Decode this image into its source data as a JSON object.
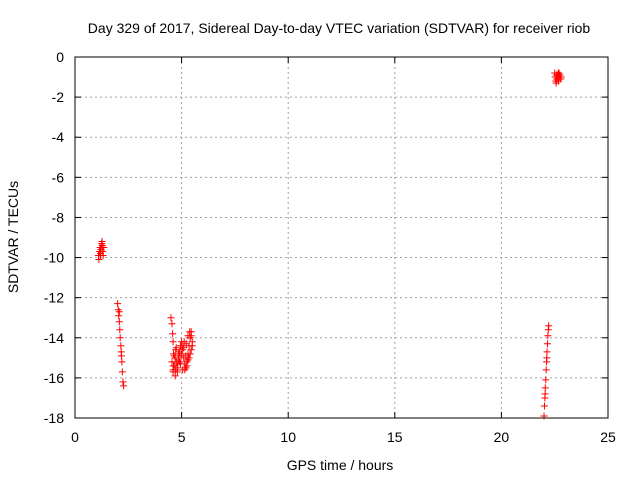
{
  "chart_data": {
    "type": "scatter",
    "title": "Day 329 of 2017, Sidereal Day-to-day VTEC variation (SDTVAR) for receiver riob",
    "xlabel": "GPS time / hours",
    "ylabel": "SDTVAR / TECUs",
    "xlim": [
      0,
      25
    ],
    "ylim": [
      -18,
      0
    ],
    "xticks": [
      0,
      5,
      10,
      15,
      20,
      25
    ],
    "yticks": [
      0,
      -2,
      -4,
      -6,
      -8,
      -10,
      -12,
      -14,
      -16,
      -18
    ],
    "xtick_labels": [
      "0",
      "5",
      "10",
      "15",
      "20",
      "25"
    ],
    "ytick_labels": [
      "0",
      "-2",
      "-4",
      "-6",
      "-8",
      "-10",
      "-12",
      "-14",
      "-16",
      "-18"
    ],
    "grid": true,
    "marker": "+",
    "color": "#ff0000",
    "series": [
      {
        "name": "SDTVAR",
        "points": [
          [
            1.1,
            -9.9
          ],
          [
            1.12,
            -10.1
          ],
          [
            1.15,
            -9.7
          ],
          [
            1.18,
            -9.5
          ],
          [
            1.2,
            -9.8
          ],
          [
            1.22,
            -9.6
          ],
          [
            1.25,
            -9.3
          ],
          [
            1.28,
            -9.4
          ],
          [
            1.3,
            -9.7
          ],
          [
            1.32,
            -9.9
          ],
          [
            1.35,
            -9.5
          ],
          [
            1.2,
            -9.9
          ],
          [
            1.27,
            -9.2
          ],
          [
            2.0,
            -12.3
          ],
          [
            2.03,
            -12.6
          ],
          [
            2.05,
            -12.9
          ],
          [
            2.08,
            -13.2
          ],
          [
            2.1,
            -13.6
          ],
          [
            2.12,
            -14.0
          ],
          [
            2.15,
            -14.4
          ],
          [
            2.18,
            -14.9
          ],
          [
            2.2,
            -15.2
          ],
          [
            2.22,
            -15.7
          ],
          [
            2.25,
            -16.2
          ],
          [
            2.28,
            -16.4
          ],
          [
            2.08,
            -12.7
          ],
          [
            2.17,
            -14.7
          ],
          [
            4.5,
            -13.0
          ],
          [
            4.55,
            -13.3
          ],
          [
            4.58,
            -13.8
          ],
          [
            4.6,
            -14.2
          ],
          [
            4.62,
            -14.8
          ],
          [
            4.55,
            -15.2
          ],
          [
            4.6,
            -15.6
          ],
          [
            4.65,
            -15.4
          ],
          [
            4.7,
            -15.0
          ],
          [
            4.72,
            -14.6
          ],
          [
            4.75,
            -15.2
          ],
          [
            4.8,
            -15.5
          ],
          [
            4.85,
            -15.1
          ],
          [
            4.9,
            -14.7
          ],
          [
            4.95,
            -14.4
          ],
          [
            5.0,
            -14.2
          ],
          [
            5.05,
            -14.6
          ],
          [
            5.1,
            -15.0
          ],
          [
            5.15,
            -15.3
          ],
          [
            5.2,
            -15.5
          ],
          [
            5.25,
            -15.2
          ],
          [
            5.3,
            -14.8
          ],
          [
            5.35,
            -14.4
          ],
          [
            5.4,
            -14.0
          ],
          [
            5.45,
            -13.7
          ],
          [
            5.5,
            -14.2
          ],
          [
            5.4,
            -14.8
          ],
          [
            5.3,
            -15.1
          ],
          [
            5.2,
            -14.9
          ],
          [
            5.1,
            -14.5
          ],
          [
            5.0,
            -14.8
          ],
          [
            4.9,
            -15.2
          ],
          [
            4.8,
            -15.7
          ],
          [
            4.7,
            -15.9
          ],
          [
            4.6,
            -15.7
          ],
          [
            4.65,
            -14.9
          ],
          [
            4.75,
            -14.5
          ],
          [
            4.85,
            -14.8
          ],
          [
            4.95,
            -15.3
          ],
          [
            5.05,
            -15.6
          ],
          [
            5.15,
            -15.6
          ],
          [
            5.25,
            -15.4
          ],
          [
            5.35,
            -15.0
          ],
          [
            5.45,
            -14.6
          ],
          [
            5.5,
            -14.4
          ],
          [
            5.45,
            -13.9
          ],
          [
            5.38,
            -13.7
          ],
          [
            5.3,
            -13.9
          ],
          [
            5.22,
            -14.3
          ],
          [
            5.12,
            -14.2
          ],
          [
            5.02,
            -14.4
          ],
          [
            4.92,
            -14.9
          ],
          [
            4.82,
            -15.3
          ],
          [
            4.72,
            -15.6
          ],
          [
            4.62,
            -15.4
          ],
          [
            22.0,
            -17.9
          ],
          [
            22.02,
            -17.4
          ],
          [
            22.04,
            -17.0
          ],
          [
            22.06,
            -16.5
          ],
          [
            22.08,
            -16.1
          ],
          [
            22.1,
            -15.6
          ],
          [
            22.12,
            -15.2
          ],
          [
            22.14,
            -14.7
          ],
          [
            22.16,
            -14.3
          ],
          [
            22.18,
            -13.9
          ],
          [
            22.2,
            -13.6
          ],
          [
            22.22,
            -13.4
          ],
          [
            22.05,
            -16.8
          ],
          [
            22.13,
            -15.0
          ],
          [
            22.5,
            -0.8
          ],
          [
            22.52,
            -1.0
          ],
          [
            22.55,
            -1.2
          ],
          [
            22.58,
            -0.9
          ],
          [
            22.6,
            -1.1
          ],
          [
            22.62,
            -0.9
          ],
          [
            22.65,
            -1.0
          ],
          [
            22.68,
            -1.2
          ],
          [
            22.7,
            -0.8
          ],
          [
            22.72,
            -1.0
          ],
          [
            22.75,
            -0.9
          ],
          [
            22.78,
            -1.1
          ],
          [
            22.8,
            -1.0
          ],
          [
            22.57,
            -1.3
          ],
          [
            22.67,
            -0.8
          ]
        ]
      }
    ]
  }
}
